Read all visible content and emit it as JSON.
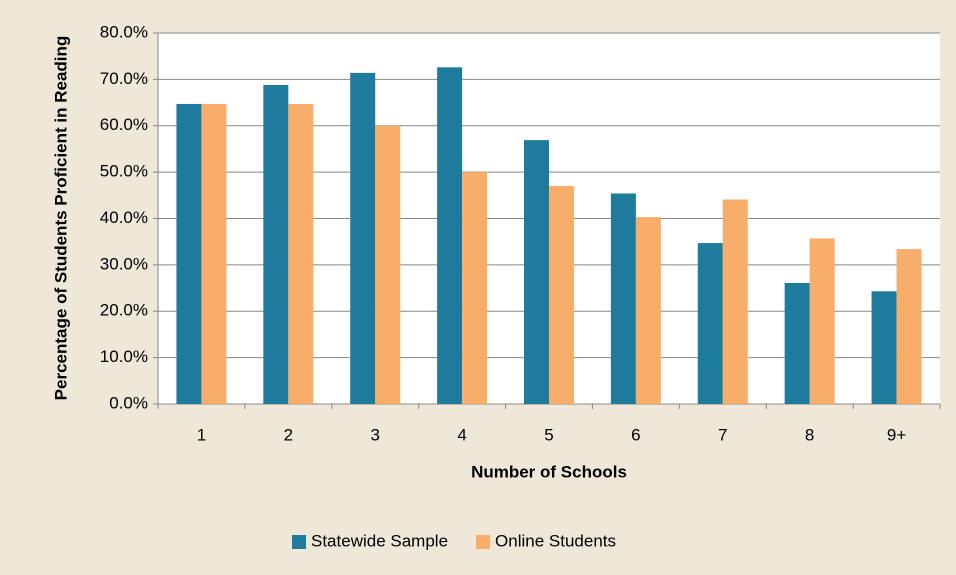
{
  "chart_data": {
    "type": "bar",
    "x_label": "Number of Schools",
    "y_label": "Percentage of Students Proficient in Reading",
    "categories": [
      "1",
      "2",
      "3",
      "4",
      "5",
      "6",
      "7",
      "8",
      "9+"
    ],
    "series": [
      {
        "name": "Statewide Sample",
        "color": "#1f7b9b",
        "values": [
          64.7,
          68.8,
          71.4,
          72.6,
          56.9,
          45.4,
          34.7,
          26.1,
          24.3
        ]
      },
      {
        "name": "Online Students",
        "color": "#f9ad6a",
        "values": [
          64.7,
          64.7,
          60.0,
          50.0,
          47.0,
          40.3,
          44.1,
          35.7,
          33.4
        ]
      }
    ],
    "ylim": [
      0,
      80
    ],
    "yticks": [
      {
        "value": 0,
        "label": "0.0%"
      },
      {
        "value": 10,
        "label": "10.0%"
      },
      {
        "value": 20,
        "label": "20.0%"
      },
      {
        "value": 30,
        "label": "30.0%"
      },
      {
        "value": 40,
        "label": "40.0%"
      },
      {
        "value": 50,
        "label": "50.0%"
      },
      {
        "value": 60,
        "label": "60.0%"
      },
      {
        "value": 70,
        "label": "70.0%"
      },
      {
        "value": 80,
        "label": "80.0%"
      }
    ],
    "grid": true,
    "legend": "bottom"
  }
}
